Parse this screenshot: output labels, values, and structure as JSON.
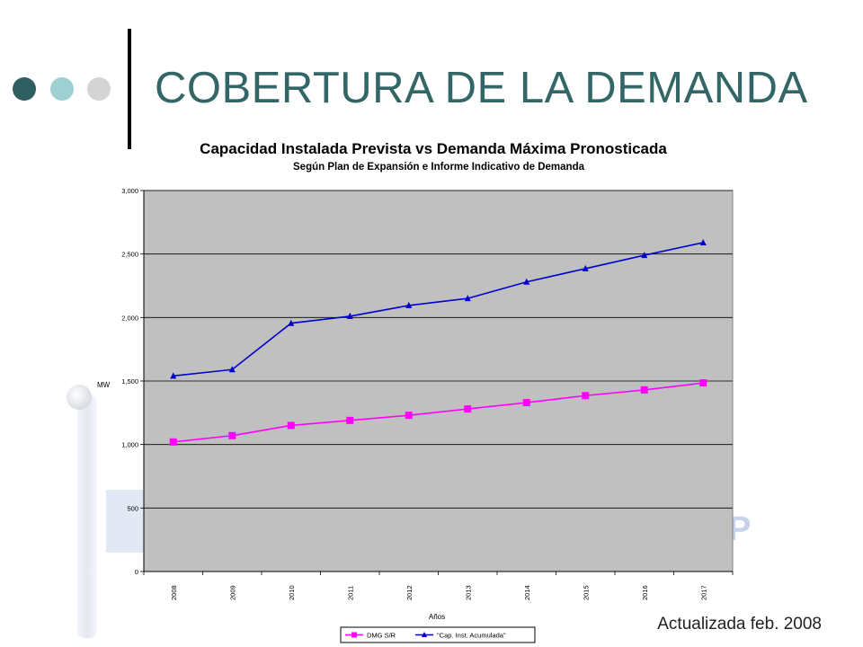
{
  "slide": {
    "title": "COBERTURA DE LA DEMANDA",
    "footer": "Actualizada feb. 2008"
  },
  "colors": {
    "title": "#336666",
    "plot_area": "#c0c0c0",
    "series_demand": "#ff00ff",
    "series_capacity": "#0000cc"
  },
  "chart_data": {
    "type": "line",
    "title": "Capacidad Instalada Prevista vs Demanda Máxima Pronosticada",
    "subtitle": "Según Plan de Expansión e Informe Indicativo de Demanda",
    "xlabel": "Años",
    "ylabel": "MW",
    "categories": [
      "2008",
      "2009",
      "2010",
      "2011",
      "2012",
      "2013",
      "2014",
      "2015",
      "2016",
      "2017"
    ],
    "ylim": [
      0,
      3000
    ],
    "yticks": [
      0,
      500,
      1000,
      1500,
      2000,
      2500,
      3000
    ],
    "ytick_labels": [
      "0",
      "500",
      "1,000",
      "1,500",
      "2,000",
      "2,500",
      "3,000"
    ],
    "grid": "horizontal",
    "legend_position": "bottom",
    "series": [
      {
        "name": "DMG S/R",
        "marker": "square",
        "color": "#ff00ff",
        "values": [
          1020,
          1070,
          1150,
          1190,
          1230,
          1280,
          1330,
          1385,
          1430,
          1485
        ]
      },
      {
        "name": "\"Cap. Inst. Acumulada\"",
        "marker": "triangle",
        "color": "#0000cc",
        "values": [
          1540,
          1590,
          1955,
          2010,
          2095,
          2150,
          2280,
          2385,
          2490,
          2590
        ]
      }
    ]
  }
}
